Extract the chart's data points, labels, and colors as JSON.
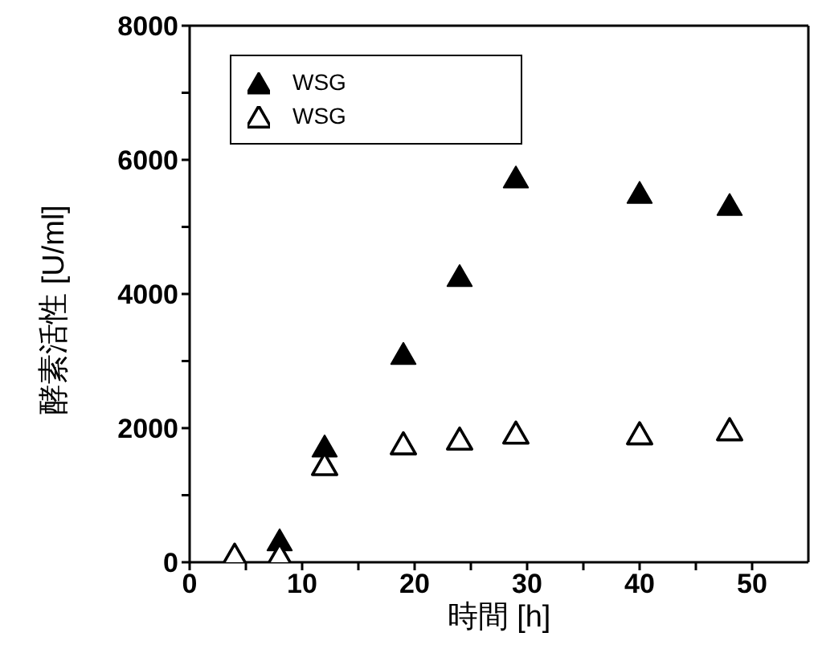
{
  "chart_data": {
    "type": "scatter",
    "xlabel": "時間 [h]",
    "ylabel": "酵素活性 [U/ml]",
    "marker": "triangle",
    "legend": "top left",
    "xlim": [
      0,
      55
    ],
    "xticks": [
      0,
      {
        "value": 5,
        "label": null
      },
      10,
      {
        "value": 15,
        "label": null
      },
      20,
      {
        "value": 25,
        "label": null
      },
      30,
      {
        "value": 35,
        "label": null
      },
      40,
      {
        "value": 45,
        "label": null
      },
      50
    ],
    "ylim": [
      0,
      8000
    ],
    "yticks": [
      0,
      {
        "value": 1000,
        "label": null
      },
      2000,
      {
        "value": 3000,
        "label": null
      },
      4000,
      {
        "value": 5000,
        "label": null
      },
      6000,
      {
        "value": 7000,
        "label": null
      },
      8000
    ],
    "series": [
      {
        "name": "WSG",
        "color": "#000000",
        "x": [
          8,
          12,
          19,
          24,
          29,
          40,
          48
        ],
        "values": [
          300,
          1700,
          3080,
          4240,
          5710,
          5480,
          5300
        ]
      },
      {
        "name": "WSG",
        "color": "#000000",
        "x": [
          4,
          8,
          12,
          19,
          24,
          29,
          40,
          48
        ],
        "values": [
          80,
          80,
          1430,
          1740,
          1810,
          1900,
          1890,
          1950
        ]
      }
    ]
  }
}
